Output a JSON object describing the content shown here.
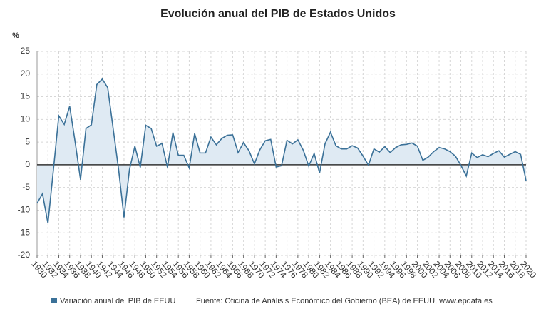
{
  "chart_data": {
    "type": "line",
    "title": "Evolución anual del PIB de Estados Unidos",
    "y_label": "%",
    "source": "Fuente: Oficina de Análisis Económico del Gobierno (BEA) de EEUU, www.epdata.es",
    "x": [
      1930,
      1931,
      1932,
      1933,
      1934,
      1935,
      1936,
      1937,
      1938,
      1939,
      1940,
      1941,
      1942,
      1943,
      1944,
      1945,
      1946,
      1947,
      1948,
      1949,
      1950,
      1951,
      1952,
      1953,
      1954,
      1955,
      1956,
      1957,
      1958,
      1959,
      1960,
      1961,
      1962,
      1963,
      1964,
      1965,
      1966,
      1967,
      1968,
      1969,
      1970,
      1971,
      1972,
      1973,
      1974,
      1975,
      1976,
      1977,
      1978,
      1979,
      1980,
      1981,
      1982,
      1983,
      1984,
      1985,
      1986,
      1987,
      1988,
      1989,
      1990,
      1991,
      1992,
      1993,
      1994,
      1995,
      1996,
      1997,
      1998,
      1999,
      2000,
      2001,
      2002,
      2003,
      2004,
      2005,
      2006,
      2007,
      2008,
      2009,
      2010,
      2011,
      2012,
      2013,
      2014,
      2015,
      2016,
      2017,
      2018,
      2019,
      2020
    ],
    "series": [
      {
        "name": "Variación anual del PIB de EEUU",
        "color": "#3b7198",
        "values": [
          -8.5,
          -6.4,
          -12.9,
          -1.2,
          10.8,
          8.9,
          12.9,
          5.1,
          -3.3,
          8.0,
          8.8,
          17.7,
          18.9,
          17.0,
          8.0,
          -1.0,
          -11.6,
          -1.1,
          4.1,
          -0.6,
          8.7,
          8.0,
          4.1,
          4.7,
          -0.6,
          7.1,
          2.1,
          2.1,
          -0.7,
          6.9,
          2.6,
          2.6,
          6.1,
          4.4,
          5.8,
          6.5,
          6.6,
          2.7,
          4.9,
          3.1,
          0.2,
          3.3,
          5.3,
          5.6,
          -0.5,
          -0.2,
          5.4,
          4.6,
          5.5,
          3.2,
          -0.3,
          2.5,
          -1.8,
          4.6,
          7.2,
          4.2,
          3.5,
          3.5,
          4.2,
          3.7,
          1.9,
          -0.1,
          3.5,
          2.8,
          4.0,
          2.7,
          3.8,
          4.4,
          4.5,
          4.8,
          4.1,
          1.0,
          1.7,
          2.9,
          3.8,
          3.5,
          2.9,
          1.9,
          -0.1,
          -2.5,
          2.6,
          1.6,
          2.2,
          1.8,
          2.5,
          3.1,
          1.7,
          2.3,
          2.9,
          2.3,
          -3.5
        ]
      }
    ],
    "xlim": [
      1930,
      2020
    ],
    "xticks": [
      1930,
      1932,
      1934,
      1936,
      1938,
      1940,
      1942,
      1944,
      1946,
      1948,
      1950,
      1952,
      1954,
      1956,
      1958,
      1960,
      1962,
      1964,
      1966,
      1968,
      1970,
      1972,
      1974,
      1976,
      1978,
      1980,
      1982,
      1984,
      1986,
      1988,
      1990,
      1992,
      1994,
      1996,
      1998,
      2000,
      2002,
      2004,
      2006,
      2008,
      2010,
      2012,
      2014,
      2016,
      2018,
      2020
    ],
    "ylim": [
      -20,
      25
    ],
    "yticks": [
      -20,
      -15,
      -10,
      -5,
      0,
      5,
      10,
      15,
      20,
      25
    ],
    "grid": true,
    "area_color": "#dfeaf3"
  }
}
